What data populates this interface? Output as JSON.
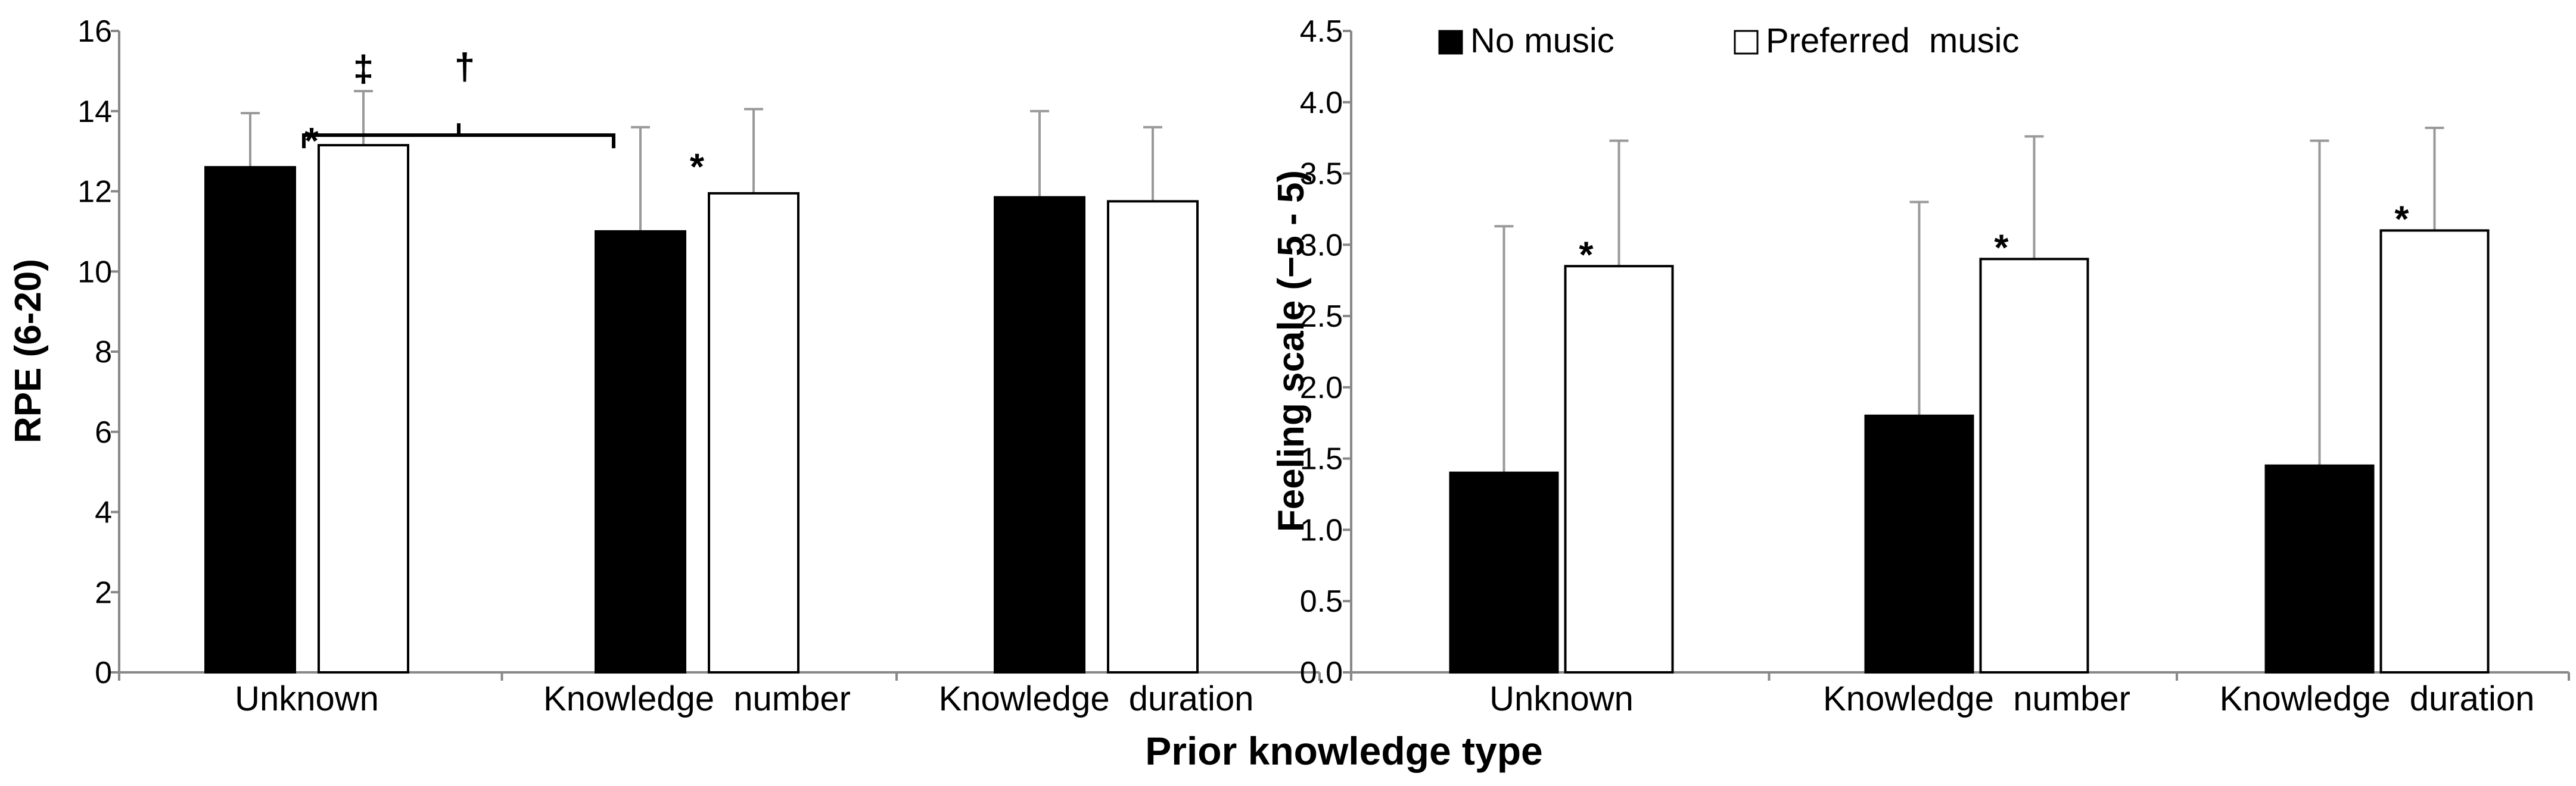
{
  "figure": {
    "xlabel": "Prior knowledge type"
  },
  "legend": {
    "items": [
      {
        "label": "No music",
        "color": "#000000"
      },
      {
        "label": "Preferred  music",
        "color": "#ffffff"
      }
    ],
    "placement": "top"
  },
  "chart_data": [
    {
      "type": "bar",
      "title": "",
      "xlabel": "",
      "ylabel": "RPE (6-20)",
      "ylim": [
        0,
        16
      ],
      "yticks": [
        "0",
        "2",
        "4",
        "6",
        "8",
        "10",
        "12",
        "14",
        "16"
      ],
      "categories": [
        "Unknown",
        "Knowledge  number",
        "Knowledge  duration"
      ],
      "series": [
        {
          "name": "No music",
          "color": "#000000",
          "values": [
            12.6,
            11.0,
            11.85
          ],
          "errors": [
            1.35,
            2.6,
            2.15
          ]
        },
        {
          "name": "Preferred  music",
          "color": "#ffffff",
          "values": [
            13.15,
            11.95,
            11.75
          ],
          "errors": [
            1.35,
            2.1,
            1.85
          ]
        }
      ],
      "annotations": [
        {
          "text": "*",
          "category": 0,
          "series": 0
        },
        {
          "text": "‡",
          "category": 0,
          "series": 1
        },
        {
          "text": "†",
          "bracket": [
            0,
            1
          ]
        },
        {
          "text": "*",
          "category": 1,
          "series": 0
        }
      ],
      "grid": false
    },
    {
      "type": "bar",
      "title": "",
      "xlabel": "",
      "ylabel": "Feeling scale (−5 - 5)",
      "ylim": [
        0,
        4.5
      ],
      "yticks": [
        "0.0",
        "0.5",
        "1.0",
        "1.5",
        "2.0",
        "2.5",
        "3.0",
        "3.5",
        "4.0",
        "4.5"
      ],
      "categories": [
        "Unknown",
        "Knowledge  number",
        "Knowledge  duration"
      ],
      "series": [
        {
          "name": "No music",
          "color": "#000000",
          "values": [
            1.4,
            1.8,
            1.45
          ],
          "errors": [
            1.73,
            1.5,
            2.28
          ]
        },
        {
          "name": "Preferred  music",
          "color": "#ffffff",
          "values": [
            2.85,
            2.9,
            3.1
          ],
          "errors": [
            0.88,
            0.86,
            0.72
          ]
        }
      ],
      "annotations": [
        {
          "text": "*",
          "category": 0,
          "series": 0
        },
        {
          "text": "*",
          "category": 1,
          "series": 0
        },
        {
          "text": "*",
          "category": 2,
          "series": 0
        }
      ],
      "grid": false
    }
  ]
}
